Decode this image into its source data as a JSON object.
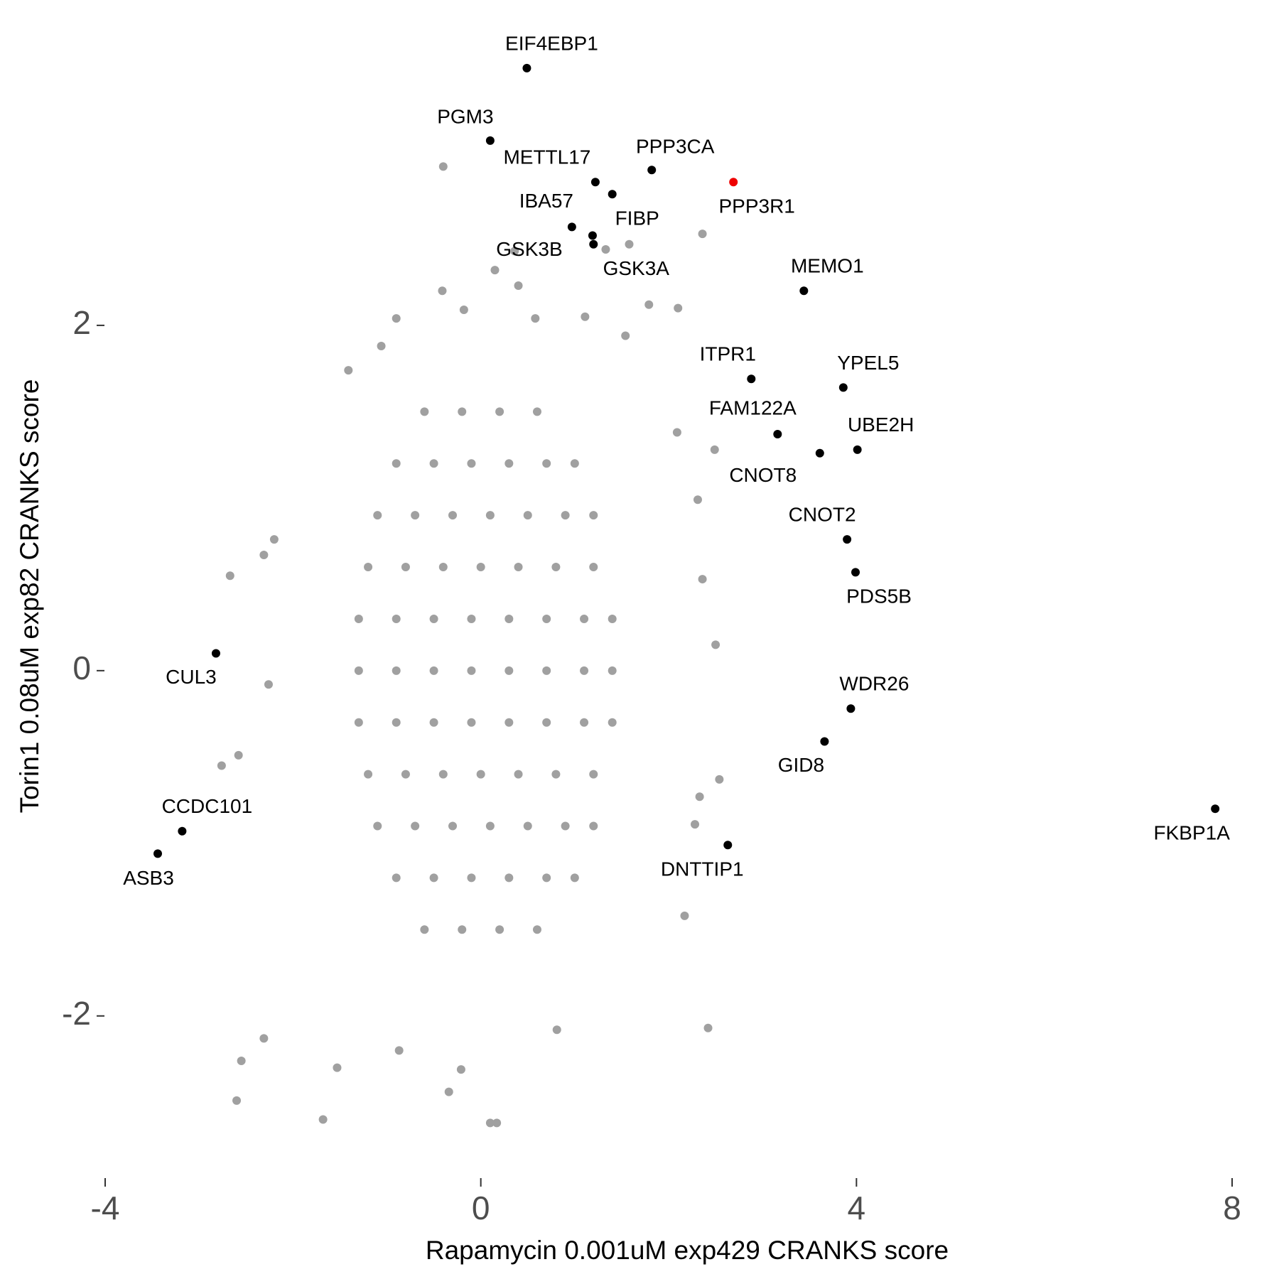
{
  "chart_data": {
    "type": "scatter",
    "x_label": "Rapamycin 0.001uM exp429 CRANKS score",
    "y_label": "Torin1 0.08uM exp82 CRANKS score",
    "xlim": [
      -4,
      8
    ],
    "ylim": [
      -2.75,
      3.65
    ],
    "xticks": [
      -4,
      0,
      4,
      8
    ],
    "yticks": [
      -2,
      0,
      2
    ],
    "grid": false,
    "series": [
      {
        "color": "#a0a0a0",
        "x": [
          -0.4,
          0.36,
          0.15,
          2.36,
          1.58,
          1.33,
          0.4,
          -0.41,
          1.79,
          2.1,
          2.09,
          2.49,
          2.31,
          2.36,
          2.5,
          2.54,
          2.33,
          2.28,
          2.42,
          2.17,
          -2.67,
          -2.2,
          -2.31,
          -2.26,
          -2.58,
          -2.76,
          -2.6,
          -2.55,
          -2.31,
          -1.68,
          -1.53,
          -0.34,
          -0.21,
          0.1,
          0.17,
          -0.87,
          0.81,
          -1.41,
          -1.06,
          -0.9,
          -0.18,
          1.11,
          1.54,
          0.58,
          -0.6,
          -0.2,
          0.2,
          0.6,
          -0.9,
          -0.5,
          -0.1,
          0.3,
          0.7,
          1.0,
          -1.1,
          -0.7,
          -0.3,
          0.1,
          0.5,
          0.9,
          1.2,
          -1.2,
          -0.8,
          -0.4,
          0,
          0.4,
          0.8,
          1.2,
          -1.3,
          -0.9,
          -0.5,
          -0.1,
          0.3,
          0.7,
          1.1,
          1.4,
          -1.3,
          -0.9,
          -0.5,
          -0.1,
          0.3,
          0.7,
          1.1,
          1.4,
          -1.3,
          -0.9,
          -0.5,
          -0.1,
          0.3,
          0.7,
          1.1,
          1.4,
          -1.2,
          -0.8,
          -0.4,
          0,
          0.4,
          0.8,
          1.2,
          -1.1,
          -0.7,
          -0.3,
          0.1,
          0.5,
          0.9,
          1.2,
          -0.9,
          -0.5,
          -0.1,
          0.3,
          0.7,
          1.0,
          -0.6,
          -0.2,
          0.2,
          0.6
        ],
        "y": [
          2.92,
          2.43,
          2.32,
          2.53,
          2.47,
          2.44,
          2.23,
          2.2,
          2.12,
          2.1,
          1.38,
          1.28,
          0.99,
          0.53,
          0.15,
          -0.63,
          -0.73,
          -0.89,
          -2.07,
          -1.42,
          0.55,
          0.76,
          0.67,
          -0.08,
          -0.49,
          -0.55,
          -2.49,
          -2.26,
          -2.13,
          -2.6,
          -2.3,
          -2.44,
          -2.31,
          -2.62,
          -2.62,
          -2.2,
          -2.08,
          1.74,
          1.88,
          2.04,
          2.09,
          2.05,
          1.94,
          2.04,
          1.5,
          1.5,
          1.5,
          1.5,
          1.2,
          1.2,
          1.2,
          1.2,
          1.2,
          1.2,
          0.9,
          0.9,
          0.9,
          0.9,
          0.9,
          0.9,
          0.9,
          0.6,
          0.6,
          0.6,
          0.6,
          0.6,
          0.6,
          0.6,
          0.3,
          0.3,
          0.3,
          0.3,
          0.3,
          0.3,
          0.3,
          0.3,
          0,
          0,
          0,
          0,
          0,
          0,
          0,
          0,
          -0.3,
          -0.3,
          -0.3,
          -0.3,
          -0.3,
          -0.3,
          -0.3,
          -0.3,
          -0.6,
          -0.6,
          -0.6,
          -0.6,
          -0.6,
          -0.6,
          -0.6,
          -0.9,
          -0.9,
          -0.9,
          -0.9,
          -0.9,
          -0.9,
          -0.9,
          -1.2,
          -1.2,
          -1.2,
          -1.2,
          -1.2,
          -1.2,
          -1.5,
          -1.5,
          -1.5,
          -1.5
        ]
      },
      {
        "color": "#000000",
        "labels": [
          "EIF4EBP1",
          "PGM3",
          "METTL17",
          "PPP3CA",
          "FIBP",
          "IBA57",
          "GSK3B",
          "GSK3A",
          "MEMO1",
          "ITPR1",
          "YPEL5",
          "FAM122A",
          "CNOT8",
          "UBE2H",
          "CNOT2",
          "PDS5B",
          "CUL3",
          "WDR26",
          "GID8",
          "FKBP1A",
          "CCDC101",
          "ASB3",
          "DNTTIP1"
        ],
        "x": [
          0.49,
          0.1,
          1.22,
          1.82,
          1.4,
          0.97,
          1.19,
          1.2,
          3.44,
          2.88,
          3.86,
          3.16,
          3.61,
          4.01,
          3.9,
          3.99,
          -2.82,
          3.94,
          3.66,
          7.82,
          -3.18,
          -3.44,
          2.63
        ],
        "y": [
          3.49,
          3.07,
          2.83,
          2.9,
          2.76,
          2.57,
          2.52,
          2.47,
          2.2,
          1.69,
          1.64,
          1.37,
          1.26,
          1.28,
          0.76,
          0.57,
          0.1,
          -0.22,
          -0.41,
          -0.8,
          -0.93,
          -1.06,
          -1.01
        ]
      },
      {
        "color": "#ee0000",
        "labels": [
          "PPP3R1"
        ],
        "x": [
          2.69
        ],
        "y": [
          2.83
        ]
      }
    ]
  }
}
